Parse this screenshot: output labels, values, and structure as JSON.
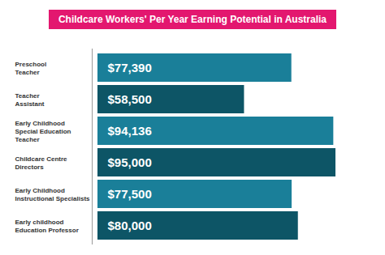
{
  "chart_data": {
    "type": "bar",
    "orientation": "horizontal",
    "title": "Childcare Workers' Per Year Earning Potential in Australia",
    "categories": [
      "Preschool\nTeacher",
      "Teacher\nAssistant",
      "Early Childhood\nSpecial Education\nTeacher",
      "Childcare Centre\nDirectors",
      "Early Childhood\nInstructional Specialists",
      "Early childhood\nEducation Professor"
    ],
    "values": [
      77390,
      58500,
      94136,
      95000,
      77500,
      80000
    ],
    "value_labels": [
      "$77,390",
      "$58,500",
      "$94,136",
      "$95,000",
      "$77,500",
      "$80,000"
    ],
    "colors": [
      "#1a7f99",
      "#0d5566",
      "#1a7f99",
      "#0d5566",
      "#1a7f99",
      "#0d5566"
    ],
    "data_labels": true,
    "tick_labels": "y",
    "grid": false
  }
}
